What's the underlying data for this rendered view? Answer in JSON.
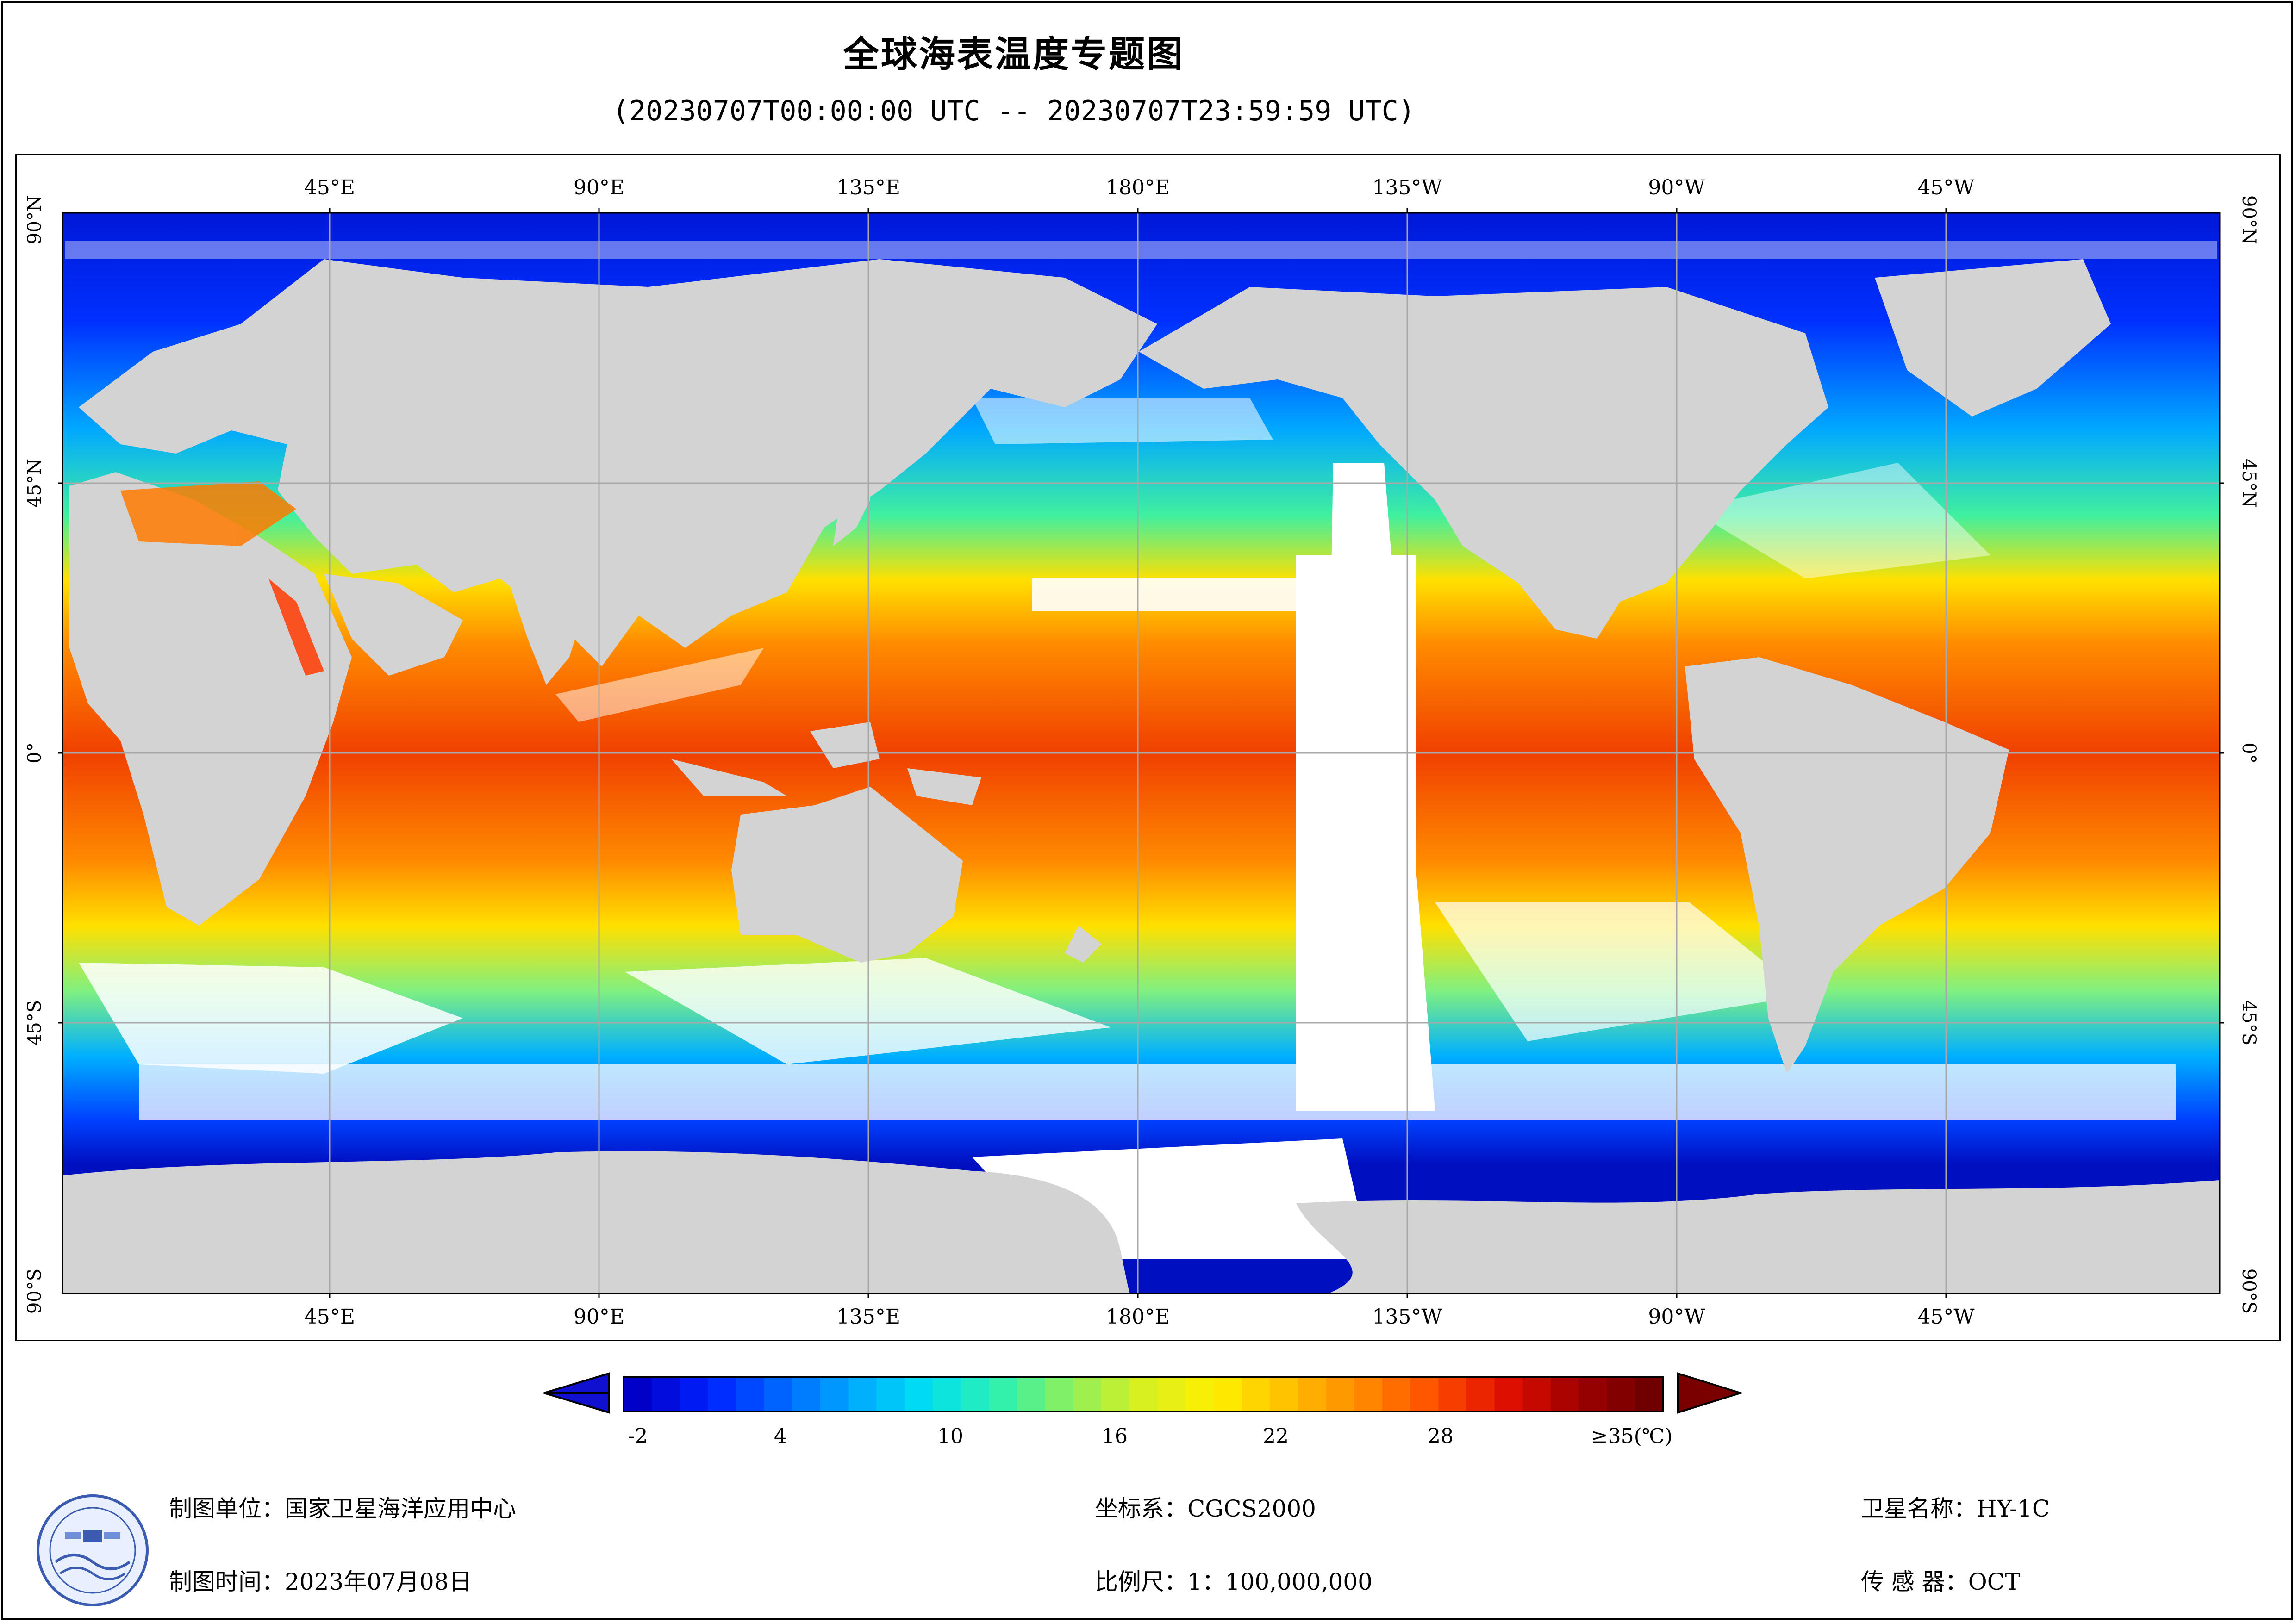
{
  "title": "全球海表温度专题图",
  "subtitle": "(20230707T00:00:00 UTC -- 20230707T23:59:59 UTC)",
  "map": {
    "lon_labels_top": [
      "45°E",
      "90°E",
      "135°E",
      "180°E",
      "135°W",
      "90°W",
      "45°W"
    ],
    "lon_labels_bottom": [
      "45°E",
      "90°E",
      "135°E",
      "180°E",
      "135°W",
      "90°W",
      "45°W"
    ],
    "lat_labels_left": [
      "90°N",
      "45°N",
      "0°",
      "45°S",
      "90°S"
    ],
    "lat_labels_right": [
      "90°N",
      "45°N",
      "0°",
      "45°S",
      "90°S"
    ],
    "colors": {
      "land": "#d3d3d3",
      "no_data": "#ffffff",
      "grid": "#a8a8a8"
    }
  },
  "colorbar": {
    "tick_labels": [
      "-2",
      "4",
      "10",
      "16",
      "22",
      "28",
      "≥35(℃)"
    ],
    "range": [
      -2,
      35
    ],
    "under_color": "#1010d0",
    "over_color": "#7a0000",
    "colors": [
      "#0000c8",
      "#0022ff",
      "#0066ff",
      "#00aaff",
      "#00e0f0",
      "#2ef0b0",
      "#8ff05a",
      "#d8f020",
      "#fff000",
      "#ffc000",
      "#ff8a00",
      "#ff5000",
      "#e01000",
      "#a00000",
      "#700000"
    ]
  },
  "footer": {
    "org": "制图单位：国家卫星海洋应用中心",
    "date": "制图时间：2023年07月08日",
    "crs": "坐标系：CGCS2000",
    "scale": "比例尺：1：100,000,000",
    "satellite": "卫星名称：HY-1C",
    "sensor": "传 感 器：OCT"
  }
}
